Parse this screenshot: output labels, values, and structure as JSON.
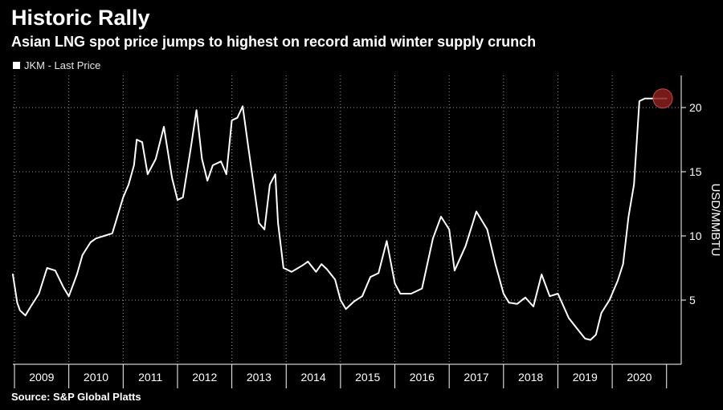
{
  "header": {
    "title": "Historic Rally",
    "subtitle": "Asian LNG spot price jumps to highest on record amid winter supply crunch"
  },
  "legend": {
    "label": "JKM - Last Price"
  },
  "footer": {
    "source": "Source: S&P Global Platts"
  },
  "colors": {
    "background": "#000000",
    "line": "#ffffff",
    "grid": "#9a9a9a",
    "highlight": "#8b1d1d"
  },
  "chart_data": {
    "type": "line",
    "series": [
      {
        "name": "JKM - Last Price",
        "x": [
          2008.97,
          2009.05,
          2009.1,
          2009.2,
          2009.3,
          2009.45,
          2009.6,
          2009.75,
          2009.9,
          2010.0,
          2010.15,
          2010.25,
          2010.4,
          2010.5,
          2010.65,
          2010.8,
          2011.0,
          2011.1,
          2011.2,
          2011.25,
          2011.35,
          2011.45,
          2011.6,
          2011.75,
          2011.9,
          2012.0,
          2012.1,
          2012.25,
          2012.35,
          2012.45,
          2012.55,
          2012.65,
          2012.8,
          2012.9,
          2013.0,
          2013.1,
          2013.2,
          2013.3,
          2013.4,
          2013.5,
          2013.6,
          2013.7,
          2013.8,
          2013.85,
          2013.95,
          2014.1,
          2014.3,
          2014.4,
          2014.55,
          2014.65,
          2014.75,
          2014.9,
          2015.0,
          2015.1,
          2015.25,
          2015.4,
          2015.55,
          2015.7,
          2015.85,
          2016.0,
          2016.1,
          2016.3,
          2016.5,
          2016.7,
          2016.85,
          2017.0,
          2017.1,
          2017.3,
          2017.5,
          2017.7,
          2017.85,
          2018.0,
          2018.1,
          2018.25,
          2018.4,
          2018.55,
          2018.7,
          2018.85,
          2019.0,
          2019.2,
          2019.35,
          2019.5,
          2019.6,
          2019.7,
          2019.8,
          2019.95,
          2020.1,
          2020.2,
          2020.3,
          2020.4,
          2020.5,
          2020.6,
          2020.7,
          2020.8,
          2020.85,
          2020.9,
          2020.95,
          2021.0
        ],
        "values": [
          7.0,
          4.8,
          4.2,
          3.8,
          4.5,
          5.5,
          7.5,
          7.3,
          6.0,
          5.3,
          7.0,
          8.5,
          9.5,
          9.8,
          10.0,
          10.2,
          13.0,
          14.0,
          15.5,
          17.5,
          17.3,
          14.8,
          16.0,
          18.5,
          14.5,
          12.8,
          13.0,
          17.0,
          19.8,
          16.0,
          14.3,
          15.5,
          15.8,
          14.8,
          19.0,
          19.2,
          20.1,
          17.0,
          14.0,
          11.0,
          10.5,
          14.0,
          14.8,
          11.0,
          7.5,
          7.2,
          7.7,
          8.0,
          7.2,
          7.8,
          7.4,
          6.6,
          5.0,
          4.3,
          4.9,
          5.3,
          6.8,
          7.1,
          9.6,
          6.3,
          5.5,
          5.5,
          5.9,
          9.8,
          11.5,
          10.5,
          7.3,
          9.2,
          11.9,
          10.5,
          7.8,
          5.5,
          4.8,
          4.7,
          5.2,
          4.5,
          7.0,
          5.3,
          5.5,
          3.6,
          2.8,
          2.0,
          1.9,
          2.3,
          4.0,
          5.0,
          6.5,
          7.8,
          11.5,
          14.0,
          20.5,
          20.7,
          20.7,
          20.7,
          20.7,
          20.7,
          20.7,
          20.7
        ]
      }
    ],
    "highlight_point": {
      "x": 2020.93,
      "y": 20.7
    },
    "x_ticks": [
      {
        "label": "2009",
        "from": 2009.0,
        "to": 2010.0
      },
      {
        "label": "2010",
        "from": 2010.0,
        "to": 2011.0
      },
      {
        "label": "2011",
        "from": 2011.0,
        "to": 2012.0
      },
      {
        "label": "2012",
        "from": 2012.0,
        "to": 2013.0
      },
      {
        "label": "2013",
        "from": 2013.0,
        "to": 2014.0
      },
      {
        "label": "2014",
        "from": 2014.0,
        "to": 2015.0
      },
      {
        "label": "2015",
        "from": 2015.0,
        "to": 2016.0
      },
      {
        "label": "2016",
        "from": 2016.0,
        "to": 2017.0
      },
      {
        "label": "2017",
        "from": 2017.0,
        "to": 2018.0
      },
      {
        "label": "2018",
        "from": 2018.0,
        "to": 2019.0
      },
      {
        "label": "2019",
        "from": 2019.0,
        "to": 2020.0
      },
      {
        "label": "2020",
        "from": 2020.0,
        "to": 2021.0
      }
    ],
    "y_ticks": [
      5,
      10,
      15,
      20
    ],
    "y_tick_labels": [
      "5",
      "10",
      "15",
      "20"
    ],
    "ylabel": "USD/MMBTU",
    "xlim": [
      2008.97,
      2021.27
    ],
    "ylim": [
      0,
      22.5
    ],
    "grid": true,
    "legend_position": "top-left"
  }
}
